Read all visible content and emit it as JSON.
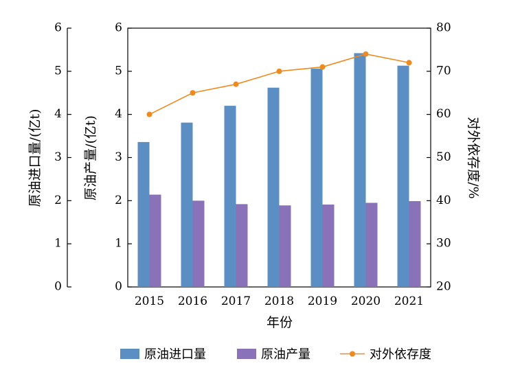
{
  "chart_data": {
    "type": "bar",
    "categories": [
      "2015",
      "2016",
      "2017",
      "2018",
      "2019",
      "2020",
      "2021"
    ],
    "xlabel": "年份",
    "y_left_outer_label": "原油进口量/(亿t)",
    "y_left_inner_label": "原油产量/(亿t)",
    "y_right_label": "对外依存度/%",
    "y_left_lim": [
      0,
      6
    ],
    "y_right_lim": [
      20,
      80
    ],
    "y_left_ticks": [
      "0",
      "1",
      "2",
      "3",
      "4",
      "5",
      "6"
    ],
    "y_right_ticks": [
      "20",
      "30",
      "40",
      "50",
      "60",
      "70",
      "80"
    ],
    "series": [
      {
        "name": "原油进口量",
        "type": "bar",
        "axis": "left",
        "color": "#5b8fc4",
        "values": [
          3.36,
          3.81,
          4.2,
          4.62,
          5.06,
          5.42,
          5.13
        ]
      },
      {
        "name": "原油产量",
        "type": "bar",
        "axis": "left",
        "color": "#8a72b8",
        "values": [
          2.14,
          2.0,
          1.92,
          1.89,
          1.91,
          1.95,
          1.99
        ]
      },
      {
        "name": "对外依存度",
        "type": "line",
        "axis": "right",
        "color": "#f08a1c",
        "values": [
          60,
          65,
          67,
          70,
          71,
          74,
          72
        ]
      }
    ],
    "grid": false,
    "legend_position": "bottom"
  }
}
